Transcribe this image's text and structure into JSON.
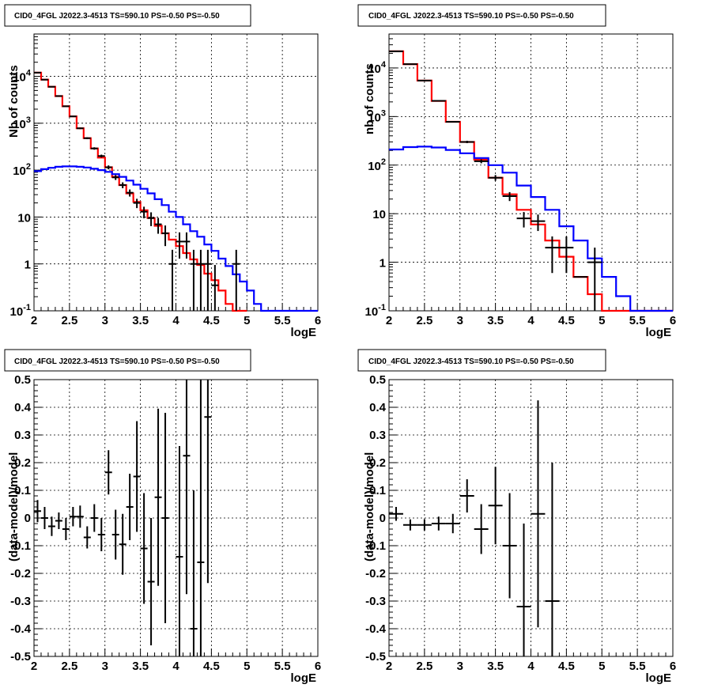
{
  "chart_data": [
    {
      "type": "histogram",
      "title": "CID0_4FGL J2022.3-4513 TS=590.10 PS=-0.50 PS=-0.50",
      "xlabel": "logE",
      "ylabel": "Nb of counts",
      "xlim": [
        2,
        6
      ],
      "ylim": [
        0.1,
        80000
      ],
      "yscale": "log",
      "grid": true,
      "x_ticks": [
        "2",
        "2.5",
        "3",
        "3.5",
        "4",
        "4.5",
        "5",
        "5.5",
        "6"
      ],
      "y_ticks": [
        "10^-1",
        "1",
        "10",
        "10^2",
        "10^3",
        "10^4"
      ],
      "bin_width": 0.1,
      "series": [
        {
          "role": "model_total",
          "color": "#ff0000",
          "bin_edges_start": 2.0,
          "values": [
            12000,
            8500,
            6000,
            3800,
            2300,
            1400,
            780,
            480,
            290,
            185,
            115,
            72,
            48,
            32,
            21,
            14,
            9.5,
            6.5,
            4.5,
            3.3,
            2.4,
            1.7,
            1.25,
            0.95,
            0.62,
            0.45,
            0.27,
            0.14,
            0.1,
            0.1
          ]
        },
        {
          "role": "model_component",
          "color": "#0000ff",
          "bin_edges_start": 2.0,
          "values": [
            95,
            105,
            112,
            118,
            120,
            120,
            118,
            114,
            107,
            100,
            92,
            82,
            72,
            60,
            49,
            40,
            32,
            24,
            18,
            13,
            10,
            7,
            5,
            3.8,
            2.6,
            1.9,
            1.3,
            0.9,
            0.6,
            0.42,
            0.27,
            0.14,
            0.1,
            0.1,
            0.1,
            0.1,
            0.1,
            0.1,
            0.1,
            0.1
          ]
        },
        {
          "role": "data",
          "color": "#000000",
          "x": [
            2.05,
            2.15,
            2.25,
            2.35,
            2.45,
            2.55,
            2.65,
            2.75,
            2.85,
            2.95,
            3.05,
            3.15,
            3.25,
            3.35,
            3.45,
            3.55,
            3.65,
            3.75,
            3.85,
            3.95,
            4.05,
            4.15,
            4.25,
            4.35,
            4.45,
            4.55,
            4.65,
            4.75,
            4.85
          ],
          "y": [
            12000,
            8500,
            6000,
            3800,
            2300,
            1400,
            780,
            480,
            290,
            200,
            115,
            70,
            48,
            33,
            20,
            13,
            9.5,
            7,
            4.5,
            1,
            3,
            3,
            1,
            1,
            1,
            0.35,
            0.1,
            0.1,
            1
          ],
          "yerr": [
            110,
            92,
            77,
            62,
            48,
            37,
            28,
            22,
            17,
            14,
            11,
            8.4,
            6.9,
            5.7,
            4.5,
            3.6,
            3.1,
            2.6,
            2.1,
            1,
            1.7,
            1.7,
            1,
            1,
            1,
            0.6,
            0,
            0,
            1
          ]
        }
      ]
    },
    {
      "type": "histogram",
      "title": "CID0_4FGL J2022.3-4513 TS=590.10 PS=-0.50 PS=-0.50",
      "xlabel": "logE",
      "ylabel": "nb of counts",
      "xlim": [
        2,
        6
      ],
      "ylim": [
        0.1,
        50000
      ],
      "yscale": "log",
      "grid": true,
      "x_ticks": [
        "2",
        "2.5",
        "3",
        "3.5",
        "4",
        "4.5",
        "5",
        "5.5",
        "6"
      ],
      "y_ticks": [
        "10^-1",
        "1",
        "10",
        "10^2",
        "10^3",
        "10^4"
      ],
      "bin_width": 0.2,
      "series": [
        {
          "role": "model_total",
          "color": "#ff0000",
          "bin_edges_start": 2.0,
          "values": [
            22000,
            12000,
            5500,
            2100,
            780,
            300,
            130,
            55,
            25,
            12,
            6,
            2.8,
            1.3,
            0.5,
            0.22,
            0.1,
            0.1,
            0.1,
            0.1,
            0.1
          ]
        },
        {
          "role": "model_component",
          "color": "#0000ff",
          "bin_edges_start": 2.0,
          "values": [
            210,
            235,
            240,
            230,
            205,
            175,
            140,
            100,
            70,
            38,
            22,
            12,
            5.5,
            2.8,
            1.2,
            0.5,
            0.2,
            0.1,
            0.1,
            0.1,
            0.1,
            0.1
          ]
        },
        {
          "role": "data",
          "color": "#000000",
          "x": [
            2.1,
            2.3,
            2.5,
            2.7,
            2.9,
            3.1,
            3.3,
            3.5,
            3.7,
            3.9,
            4.1,
            4.3,
            4.5,
            4.7,
            4.9
          ],
          "y": [
            22000,
            12000,
            5500,
            2100,
            780,
            300,
            120,
            55,
            23,
            8,
            7,
            2,
            2,
            0.5,
            1
          ],
          "yerr": [
            150,
            110,
            74,
            46,
            28,
            17,
            11,
            7.4,
            4.8,
            2.8,
            2.6,
            1.4,
            1.4,
            0,
            1
          ]
        }
      ]
    },
    {
      "type": "scatter",
      "title": "CID0_4FGL J2022.3-4513 TS=590.10 PS=-0.50 PS=-0.50",
      "xlabel": "logE",
      "ylabel": "(data-model)/model",
      "xlim": [
        2,
        6
      ],
      "ylim": [
        -0.5,
        0.5
      ],
      "grid": true,
      "x_ticks": [
        "2",
        "2.5",
        "3",
        "3.5",
        "4",
        "4.5",
        "5",
        "5.5",
        "6"
      ],
      "y_ticks": [
        "-0.5",
        "-0.4",
        "-0.3",
        "-0.2",
        "-0.1",
        "0",
        "0.1",
        "0.2",
        "0.3",
        "0.4",
        "0.5"
      ],
      "series": [
        {
          "role": "residuals",
          "color": "#000000",
          "x": [
            2.05,
            2.15,
            2.25,
            2.35,
            2.45,
            2.55,
            2.65,
            2.75,
            2.85,
            2.95,
            3.05,
            3.15,
            3.25,
            3.35,
            3.45,
            3.55,
            3.65,
            3.75,
            3.85,
            4.05,
            4.15,
            4.25,
            4.35,
            4.45
          ],
          "y": [
            0.025,
            0.0,
            -0.03,
            -0.01,
            -0.04,
            0.005,
            0.005,
            -0.07,
            0.0,
            -0.06,
            0.165,
            -0.06,
            -0.095,
            0.04,
            0.15,
            -0.11,
            -0.23,
            0.075,
            0.0,
            -0.14,
            0.225,
            -0.4,
            -0.16,
            0.365
          ],
          "yerr": [
            0.04,
            0.04,
            0.035,
            0.03,
            0.04,
            0.035,
            0.04,
            0.04,
            0.05,
            0.06,
            0.08,
            0.09,
            0.11,
            0.12,
            0.2,
            0.2,
            0.23,
            0.32,
            0.38,
            0.4,
            0.5,
            0.5,
            0.7,
            0.6
          ]
        }
      ]
    },
    {
      "type": "scatter",
      "title": "CID0_4FGL J2022.3-4513 TS=590.10 PS=-0.50 PS=-0.50",
      "xlabel": "logE",
      "ylabel": "(data-model)/model",
      "xlim": [
        2,
        6
      ],
      "ylim": [
        -0.5,
        0.5
      ],
      "grid": true,
      "x_ticks": [
        "2",
        "2.5",
        "3",
        "3.5",
        "4",
        "4.5",
        "5",
        "5.5",
        "6"
      ],
      "y_ticks": [
        "-0.5",
        "-0.4",
        "-0.3",
        "-0.2",
        "-0.1",
        "0",
        "0.1",
        "0.2",
        "0.3",
        "0.4",
        "0.5"
      ],
      "series": [
        {
          "role": "residuals",
          "color": "#000000",
          "x": [
            2.1,
            2.3,
            2.5,
            2.7,
            2.9,
            3.1,
            3.3,
            3.5,
            3.7,
            3.9,
            4.1,
            4.3
          ],
          "y": [
            0.015,
            -0.025,
            -0.025,
            -0.02,
            -0.02,
            0.08,
            -0.04,
            0.045,
            -0.1,
            -0.32,
            0.015,
            -0.3
          ],
          "yerr": [
            0.025,
            0.02,
            0.02,
            0.025,
            0.035,
            0.06,
            0.09,
            0.14,
            0.19,
            0.3,
            0.41,
            0.5
          ]
        }
      ]
    }
  ]
}
